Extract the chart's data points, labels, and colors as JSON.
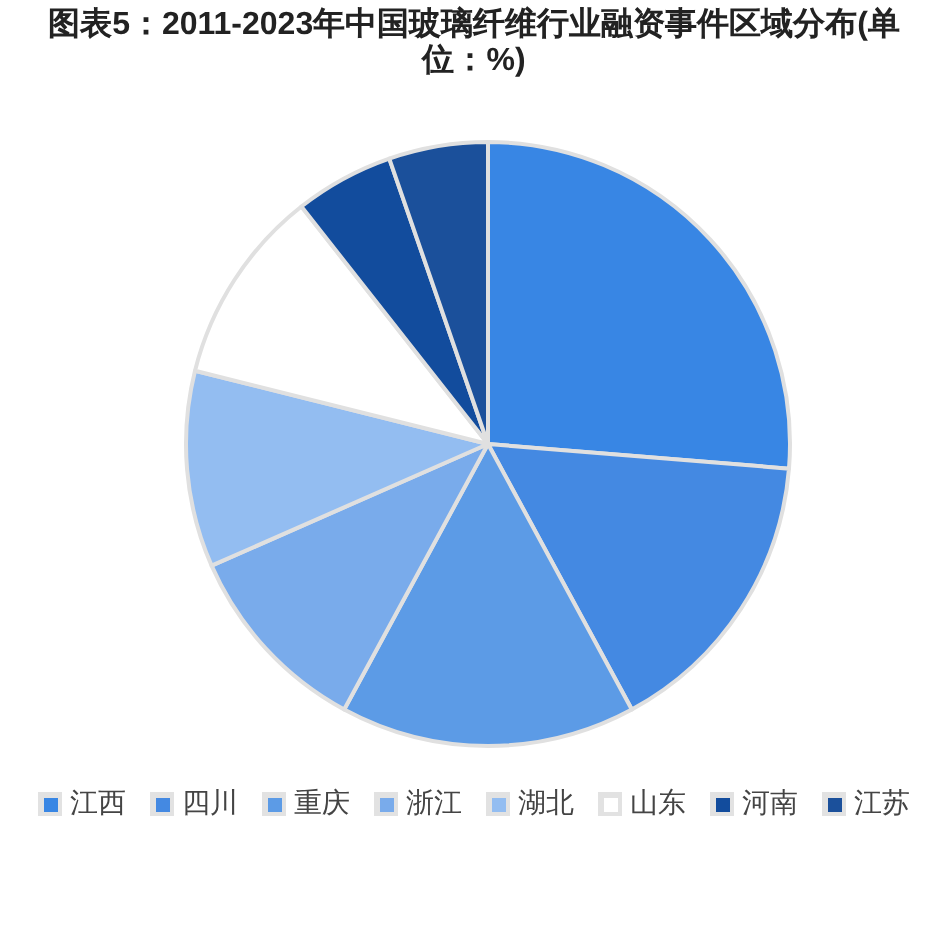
{
  "chart_data": {
    "type": "pie",
    "title": "图表5：2011-2023年中国玻璃纤维行业融资事件区域分布(单位：%)",
    "categories": [
      "江西",
      "四川",
      "重庆",
      "浙江",
      "湖北",
      "山东",
      "河南",
      "江苏"
    ],
    "values": [
      26.3,
      15.8,
      15.8,
      10.5,
      10.5,
      10.5,
      5.3,
      5.3
    ],
    "colors": [
      "#3886e4",
      "#4489e2",
      "#5c9be6",
      "#79abeb",
      "#93bdf1",
      "#ffffff",
      "#124c9d",
      "#1b509b"
    ],
    "legend": "bottom"
  }
}
